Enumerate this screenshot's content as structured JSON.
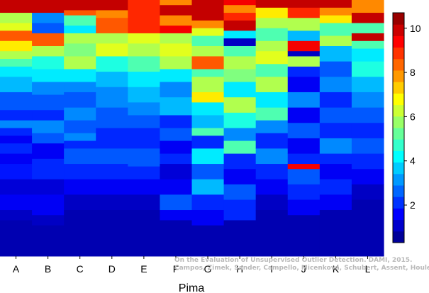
{
  "chart_data": {
    "type": "heatmap",
    "title": "",
    "xlabel": "Pima",
    "ylabel": "",
    "categories": [
      "A",
      "B",
      "C",
      "D",
      "E",
      "F",
      "G",
      "H",
      "I",
      "J",
      "K",
      "L"
    ],
    "colorbar": {
      "min": 0.3,
      "max": 10.7,
      "ticks": [
        2,
        4,
        6,
        8,
        10
      ]
    },
    "colormap": "jet",
    "columns": [
      {
        "category": "A",
        "bands": [
          [
            0.05,
            10
          ],
          [
            0.09,
            6
          ],
          [
            0.12,
            6.5
          ],
          [
            0.16,
            8.5
          ],
          [
            0.2,
            7
          ],
          [
            0.23,
            6
          ],
          [
            0.26,
            5
          ],
          [
            0.3,
            4
          ],
          [
            0.36,
            3.5
          ],
          [
            0.43,
            2.5
          ],
          [
            0.47,
            2
          ],
          [
            0.5,
            3
          ],
          [
            0.53,
            2
          ],
          [
            0.56,
            1.5
          ],
          [
            0.6,
            2
          ],
          [
            0.64,
            1.5
          ],
          [
            0.7,
            1.8
          ],
          [
            0.76,
            1.2
          ],
          [
            0.82,
            1.5
          ],
          [
            0.86,
            1
          ],
          [
            1,
            0.8
          ]
        ]
      },
      {
        "category": "B",
        "bands": [
          [
            0.05,
            10
          ],
          [
            0.09,
            3
          ],
          [
            0.13,
            2.5
          ],
          [
            0.18,
            8.5
          ],
          [
            0.22,
            6
          ],
          [
            0.27,
            4.5
          ],
          [
            0.32,
            4
          ],
          [
            0.37,
            3
          ],
          [
            0.43,
            2.5
          ],
          [
            0.47,
            2
          ],
          [
            0.52,
            3
          ],
          [
            0.56,
            2.5
          ],
          [
            0.62,
            1.5
          ],
          [
            0.7,
            2
          ],
          [
            0.76,
            1.2
          ],
          [
            0.84,
            1.5
          ],
          [
            0.88,
            1
          ],
          [
            1,
            0.8
          ]
        ]
      },
      {
        "category": "C",
        "bands": [
          [
            0.04,
            10
          ],
          [
            0.06,
            8.5
          ],
          [
            0.1,
            5
          ],
          [
            0.13,
            4
          ],
          [
            0.17,
            6
          ],
          [
            0.22,
            5.5
          ],
          [
            0.27,
            6
          ],
          [
            0.32,
            4
          ],
          [
            0.36,
            3
          ],
          [
            0.42,
            2.5
          ],
          [
            0.47,
            3
          ],
          [
            0.52,
            2.5
          ],
          [
            0.55,
            3
          ],
          [
            0.58,
            2
          ],
          [
            0.64,
            2.5
          ],
          [
            0.7,
            2
          ],
          [
            0.76,
            1.5
          ],
          [
            0.82,
            1
          ],
          [
            1,
            0.8
          ]
        ]
      },
      {
        "category": "D",
        "bands": [
          [
            0.04,
            10
          ],
          [
            0.07,
            8
          ],
          [
            0.13,
            8.5
          ],
          [
            0.17,
            6
          ],
          [
            0.22,
            6.5
          ],
          [
            0.28,
            4.5
          ],
          [
            0.34,
            3.5
          ],
          [
            0.42,
            3
          ],
          [
            0.5,
            2.5
          ],
          [
            0.58,
            2
          ],
          [
            0.64,
            2.5
          ],
          [
            0.7,
            2
          ],
          [
            0.76,
            1.5
          ],
          [
            0.82,
            1
          ],
          [
            1,
            0.8
          ]
        ]
      },
      {
        "category": "E",
        "bands": [
          [
            0.13,
            9
          ],
          [
            0.17,
            6.5
          ],
          [
            0.22,
            6
          ],
          [
            0.28,
            5
          ],
          [
            0.34,
            4
          ],
          [
            0.4,
            3.5
          ],
          [
            0.45,
            3
          ],
          [
            0.5,
            2.5
          ],
          [
            0.58,
            2
          ],
          [
            0.65,
            2.5
          ],
          [
            0.7,
            2
          ],
          [
            0.76,
            1.5
          ],
          [
            0.82,
            1
          ],
          [
            1,
            0.8
          ]
        ]
      },
      {
        "category": "F",
        "bands": [
          [
            0.02,
            8
          ],
          [
            0.06,
            10
          ],
          [
            0.1,
            8
          ],
          [
            0.13,
            9.5
          ],
          [
            0.17,
            6
          ],
          [
            0.22,
            6.5
          ],
          [
            0.27,
            6
          ],
          [
            0.32,
            4
          ],
          [
            0.38,
            3
          ],
          [
            0.45,
            3.5
          ],
          [
            0.5,
            2
          ],
          [
            0.55,
            2.5
          ],
          [
            0.6,
            1.5
          ],
          [
            0.64,
            2
          ],
          [
            0.7,
            1.2
          ],
          [
            0.76,
            1.5
          ],
          [
            0.82,
            2.5
          ],
          [
            0.86,
            1.5
          ],
          [
            1,
            0.8
          ]
        ]
      },
      {
        "category": "G",
        "bands": [
          [
            0.08,
            10
          ],
          [
            0.11,
            8
          ],
          [
            0.14,
            6.5
          ],
          [
            0.18,
            5
          ],
          [
            0.22,
            6
          ],
          [
            0.27,
            8.5
          ],
          [
            0.3,
            5
          ],
          [
            0.36,
            6
          ],
          [
            0.4,
            7
          ],
          [
            0.45,
            4
          ],
          [
            0.5,
            3.5
          ],
          [
            0.53,
            5
          ],
          [
            0.58,
            2
          ],
          [
            0.64,
            4
          ],
          [
            0.7,
            2.5
          ],
          [
            0.76,
            3.5
          ],
          [
            0.82,
            2
          ],
          [
            0.88,
            1.5
          ],
          [
            1,
            0.8
          ]
        ]
      },
      {
        "category": "H",
        "bands": [
          [
            0.02,
            9.5
          ],
          [
            0.05,
            8
          ],
          [
            0.08,
            9
          ],
          [
            0.12,
            10
          ],
          [
            0.15,
            4
          ],
          [
            0.18,
            1
          ],
          [
            0.22,
            5
          ],
          [
            0.27,
            6
          ],
          [
            0.32,
            5.5
          ],
          [
            0.38,
            4
          ],
          [
            0.44,
            6
          ],
          [
            0.5,
            4.5
          ],
          [
            0.55,
            3
          ],
          [
            0.6,
            5
          ],
          [
            0.66,
            2
          ],
          [
            0.72,
            1.5
          ],
          [
            0.78,
            2.5
          ],
          [
            0.86,
            2
          ],
          [
            1,
            0.8
          ]
        ]
      },
      {
        "category": "I",
        "bands": [
          [
            0.03,
            10
          ],
          [
            0.07,
            7
          ],
          [
            0.11,
            6
          ],
          [
            0.16,
            5
          ],
          [
            0.2,
            6
          ],
          [
            0.25,
            6.5
          ],
          [
            0.3,
            5
          ],
          [
            0.36,
            6
          ],
          [
            0.42,
            4
          ],
          [
            0.47,
            5
          ],
          [
            0.52,
            3
          ],
          [
            0.58,
            2
          ],
          [
            0.64,
            3
          ],
          [
            0.7,
            2
          ],
          [
            0.76,
            1.5
          ],
          [
            0.82,
            1
          ],
          [
            1,
            0.8
          ]
        ]
      },
      {
        "category": "J",
        "bands": [
          [
            0.03,
            10
          ],
          [
            0.07,
            9
          ],
          [
            0.12,
            6
          ],
          [
            0.16,
            3.5
          ],
          [
            0.2,
            9.5
          ],
          [
            0.22,
            1
          ],
          [
            0.26,
            6
          ],
          [
            0.3,
            2
          ],
          [
            0.36,
            1.5
          ],
          [
            0.42,
            3
          ],
          [
            0.48,
            1.5
          ],
          [
            0.54,
            2.5
          ],
          [
            0.6,
            1.5
          ],
          [
            0.64,
            2
          ],
          [
            0.66,
            9.5
          ],
          [
            0.72,
            2.5
          ],
          [
            0.78,
            2
          ],
          [
            0.84,
            1.5
          ],
          [
            1,
            0.8
          ]
        ]
      },
      {
        "category": "K",
        "bands": [
          [
            0.03,
            10
          ],
          [
            0.06,
            8
          ],
          [
            0.09,
            7
          ],
          [
            0.14,
            5
          ],
          [
            0.18,
            6
          ],
          [
            0.24,
            3.5
          ],
          [
            0.3,
            2.5
          ],
          [
            0.36,
            3
          ],
          [
            0.42,
            2
          ],
          [
            0.48,
            2.5
          ],
          [
            0.54,
            2
          ],
          [
            0.6,
            3
          ],
          [
            0.64,
            2
          ],
          [
            0.7,
            1.5
          ],
          [
            0.76,
            2
          ],
          [
            0.82,
            1.5
          ],
          [
            1,
            0.8
          ]
        ]
      },
      {
        "category": "L",
        "bands": [
          [
            0.05,
            8
          ],
          [
            0.09,
            10
          ],
          [
            0.13,
            5
          ],
          [
            0.16,
            10
          ],
          [
            0.19,
            5
          ],
          [
            0.24,
            4
          ],
          [
            0.3,
            4.5
          ],
          [
            0.36,
            3.5
          ],
          [
            0.42,
            3
          ],
          [
            0.48,
            2.5
          ],
          [
            0.54,
            2
          ],
          [
            0.6,
            2.5
          ],
          [
            0.66,
            2
          ],
          [
            0.72,
            1.5
          ],
          [
            0.78,
            1
          ],
          [
            1,
            0.8
          ]
        ]
      }
    ]
  },
  "credit": {
    "line1": "On the Evaluation of Unsupervised Outlier Detection. DAMI, 2015.",
    "line2": "Campos, Zimek, Sander, Campello, Micenková, Schubert, Assent, Houle"
  }
}
